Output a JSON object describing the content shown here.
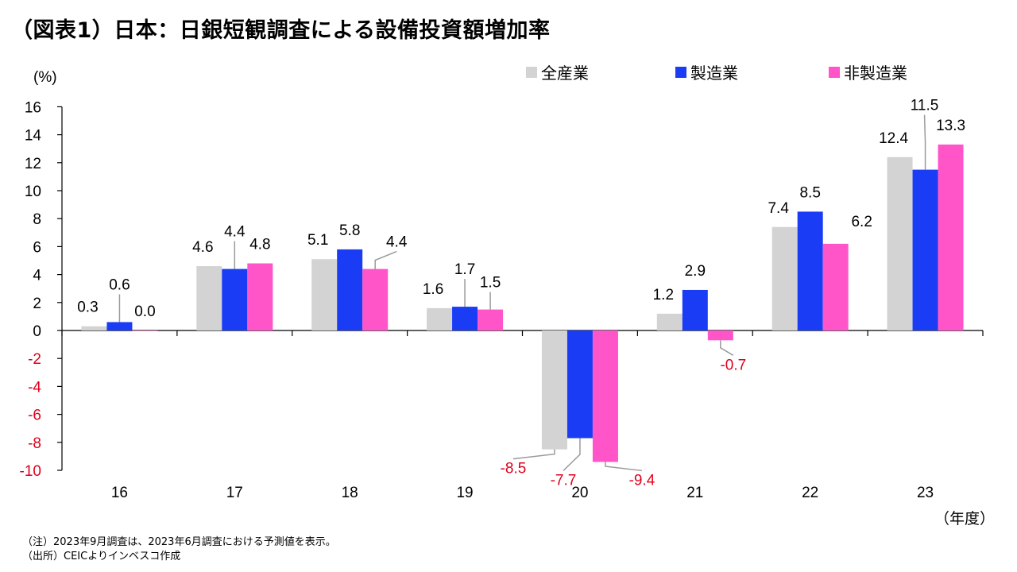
{
  "title": "（図表1）日本：日銀短観調査による設備投資額増加率",
  "notes": {
    "note": "（注）2023年9月調査は、2023年6月調査における予測値を表示。",
    "source": "（出所）CEICよりインベスコ作成"
  },
  "chart_data": {
    "type": "bar",
    "title": "",
    "ylabel": "(%)",
    "xlabel": "（年度）",
    "ylim": [
      -10,
      16
    ],
    "yticks": [
      16,
      14,
      12,
      10,
      8,
      6,
      4,
      2,
      0,
      -2,
      -4,
      -6,
      -8,
      -10
    ],
    "categories": [
      "16",
      "17",
      "18",
      "19",
      "20",
      "21",
      "22",
      "23"
    ],
    "series": [
      {
        "name": "全産業",
        "color": "#d3d3d3",
        "values": [
          0.3,
          4.6,
          5.1,
          1.6,
          -8.5,
          1.2,
          7.4,
          12.4
        ]
      },
      {
        "name": "製造業",
        "color": "#1a3cf5",
        "values": [
          0.6,
          4.4,
          5.8,
          1.7,
          -7.7,
          2.9,
          8.5,
          11.5
        ]
      },
      {
        "name": "非製造業",
        "color": "#ff55c8",
        "values": [
          0.0,
          4.8,
          4.4,
          1.5,
          -9.4,
          -0.7,
          6.2,
          13.3
        ]
      }
    ],
    "data_labels": [
      [
        "0.3",
        "4.6",
        "5.1",
        "1.6",
        "-8.5",
        "1.2",
        "7.4",
        "12.4"
      ],
      [
        "0.6",
        "4.4",
        "5.8",
        "1.7",
        "-7.7",
        "2.9",
        "8.5",
        "11.5"
      ],
      [
        "0.0",
        "4.8",
        "4.4",
        "1.5",
        "-9.4",
        "-0.7",
        "6.2",
        "13.3"
      ]
    ],
    "negative_label_color": "#e0001b",
    "legend_position": "top-right",
    "grid": false
  }
}
